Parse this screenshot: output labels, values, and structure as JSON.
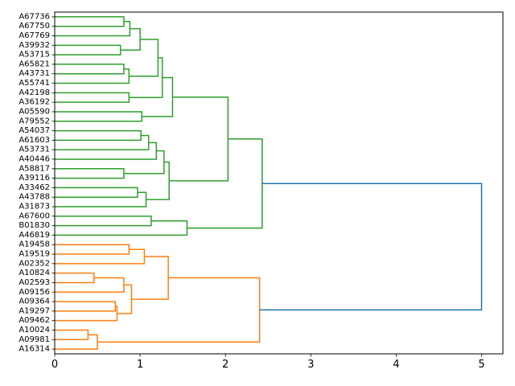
{
  "chart_data": {
    "type": "dendrogram",
    "orientation": "horizontal",
    "title": "",
    "xlabel": "",
    "ylabel": "",
    "xlim": [
      0,
      5.25
    ],
    "x_ticks": [
      "0",
      "1",
      "2",
      "3",
      "4",
      "5"
    ],
    "leaves": [
      "A67736",
      "A67750",
      "A67769",
      "A39932",
      "A53715",
      "A65821",
      "A43731",
      "A55741",
      "A42198",
      "A36192",
      "A05590",
      "A79552",
      "A54037",
      "A61603",
      "A53731",
      "A40446",
      "A58817",
      "A39116",
      "A33462",
      "A43788",
      "A31873",
      "A67600",
      "B01830",
      "A46819",
      "A19458",
      "A19519",
      "A02352",
      "A10824",
      "A02593",
      "A09156",
      "A09364",
      "A19297",
      "A09462",
      "A10024",
      "A09981",
      "A16314"
    ],
    "colors": {
      "cluster_green": "#2ca02c",
      "cluster_orange": "#ff7f0e",
      "root": "#1f77b4"
    },
    "links": [
      {
        "a": "L0",
        "b": "L1",
        "h": 0.81,
        "c": "cluster_green"
      },
      {
        "a": "L0-1",
        "b": "L2",
        "h": 0.88,
        "c": "cluster_green"
      },
      {
        "a": "L3",
        "b": "L4",
        "h": 0.77,
        "c": "cluster_green"
      },
      {
        "a": "L0-2",
        "b": "L3-4",
        "h": 1.0,
        "c": "cluster_green"
      },
      {
        "a": "L5",
        "b": "L6",
        "h": 0.81,
        "c": "cluster_green"
      },
      {
        "a": "L5-6",
        "b": "L7",
        "h": 0.87,
        "c": "cluster_green"
      },
      {
        "a": "L0-4",
        "b": "L5-7",
        "h": 1.21,
        "c": "cluster_green"
      },
      {
        "a": "L8",
        "b": "L9",
        "h": 0.87,
        "c": "cluster_green"
      },
      {
        "a": "L0-7",
        "b": "L8-9",
        "h": 1.26,
        "c": "cluster_green"
      },
      {
        "a": "L10",
        "b": "L11",
        "h": 1.02,
        "c": "cluster_green"
      },
      {
        "a": "L0-9",
        "b": "L10-11",
        "h": 1.38,
        "c": "cluster_green"
      },
      {
        "a": "L12",
        "b": "L13",
        "h": 1.01,
        "c": "cluster_green"
      },
      {
        "a": "L12-13",
        "b": "L14",
        "h": 1.1,
        "c": "cluster_green"
      },
      {
        "a": "L12-14",
        "b": "L15",
        "h": 1.19,
        "c": "cluster_green"
      },
      {
        "a": "L16",
        "b": "L17",
        "h": 0.81,
        "c": "cluster_green"
      },
      {
        "a": "L12-15",
        "b": "L16-17",
        "h": 1.28,
        "c": "cluster_green"
      },
      {
        "a": "L18",
        "b": "L19",
        "h": 0.97,
        "c": "cluster_green"
      },
      {
        "a": "L18-19",
        "b": "L20",
        "h": 1.07,
        "c": "cluster_green"
      },
      {
        "a": "L12-17",
        "b": "L18-20",
        "h": 1.34,
        "c": "cluster_green"
      },
      {
        "a": "L0-11",
        "b": "L12-20",
        "h": 2.03,
        "c": "cluster_green"
      },
      {
        "a": "L21",
        "b": "L22",
        "h": 1.13,
        "c": "cluster_green"
      },
      {
        "a": "L21-22",
        "b": "L23",
        "h": 1.55,
        "c": "cluster_green"
      },
      {
        "a": "L0-20",
        "b": "L21-23",
        "h": 2.43,
        "c": "cluster_green"
      },
      {
        "a": "L24",
        "b": "L25",
        "h": 0.87,
        "c": "cluster_orange"
      },
      {
        "a": "L24-25",
        "b": "L26",
        "h": 1.05,
        "c": "cluster_orange"
      },
      {
        "a": "L27",
        "b": "L28",
        "h": 0.46,
        "c": "cluster_orange"
      },
      {
        "a": "L27-28",
        "b": "L29",
        "h": 0.81,
        "c": "cluster_orange"
      },
      {
        "a": "L30",
        "b": "L31",
        "h": 0.71,
        "c": "cluster_orange"
      },
      {
        "a": "L30-31",
        "b": "L32",
        "h": 0.73,
        "c": "cluster_orange"
      },
      {
        "a": "L27-29",
        "b": "L30-32",
        "h": 0.9,
        "c": "cluster_orange"
      },
      {
        "a": "L24-26",
        "b": "L27-32",
        "h": 1.33,
        "c": "cluster_orange"
      },
      {
        "a": "L33",
        "b": "L34",
        "h": 0.39,
        "c": "cluster_orange"
      },
      {
        "a": "L33-34",
        "b": "L35",
        "h": 0.5,
        "c": "cluster_orange"
      },
      {
        "a": "L24-32",
        "b": "L33-35",
        "h": 2.4,
        "c": "cluster_orange"
      },
      {
        "a": "L0-23",
        "b": "L24-35",
        "h": 5.0,
        "c": "root"
      }
    ]
  }
}
